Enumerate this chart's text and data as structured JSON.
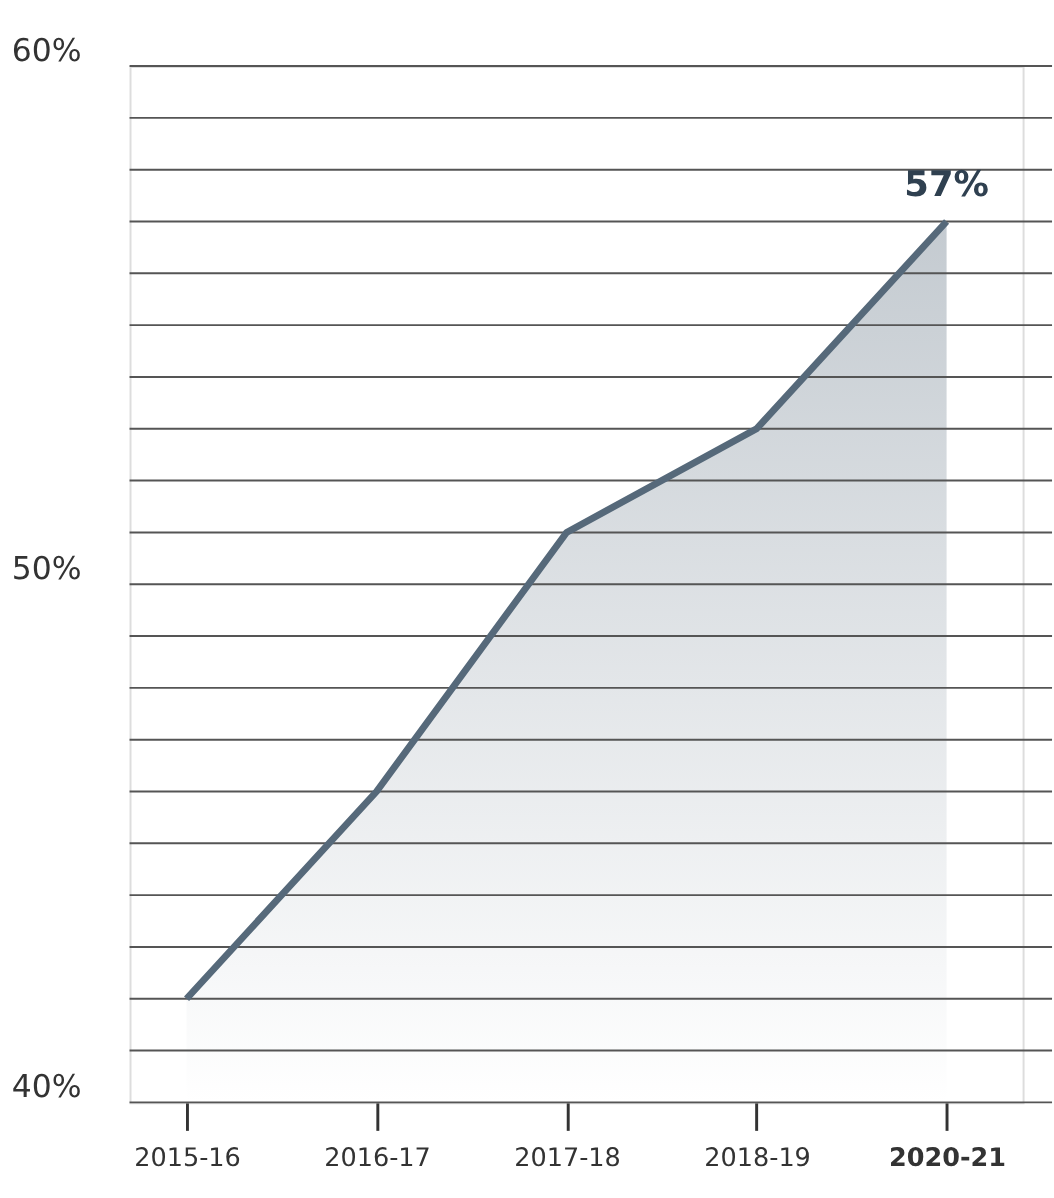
{
  "chart_data": {
    "type": "area",
    "categories": [
      "2015-16",
      "2016-17",
      "2017-18",
      "2018-19",
      "2020-21"
    ],
    "series": [
      {
        "color": "#56697a",
        "values": [
          42,
          46,
          51,
          53,
          57
        ],
        "value_labels": [
          null,
          null,
          null,
          null,
          "57%"
        ]
      }
    ],
    "ylim": [
      40,
      60
    ],
    "yticks": [
      {
        "value": 40,
        "label": "40%"
      },
      {
        "value": 41,
        "label": null
      },
      {
        "value": 42,
        "label": null
      },
      {
        "value": 43,
        "label": null
      },
      {
        "value": 44,
        "label": null
      },
      {
        "value": 45,
        "label": null
      },
      {
        "value": 46,
        "label": null
      },
      {
        "value": 47,
        "label": null
      },
      {
        "value": 48,
        "label": null
      },
      {
        "value": 49,
        "label": null
      },
      {
        "value": 50,
        "label": "50%"
      },
      {
        "value": 51,
        "label": null
      },
      {
        "value": 52,
        "label": null
      },
      {
        "value": 53,
        "label": null
      },
      {
        "value": 54,
        "label": null
      },
      {
        "value": 55,
        "label": null
      },
      {
        "value": 56,
        "label": null
      },
      {
        "value": 57,
        "label": null
      },
      {
        "value": 58,
        "label": null
      },
      {
        "value": 59,
        "label": null
      },
      {
        "value": 60,
        "label": "60%"
      }
    ],
    "grid": "y"
  }
}
